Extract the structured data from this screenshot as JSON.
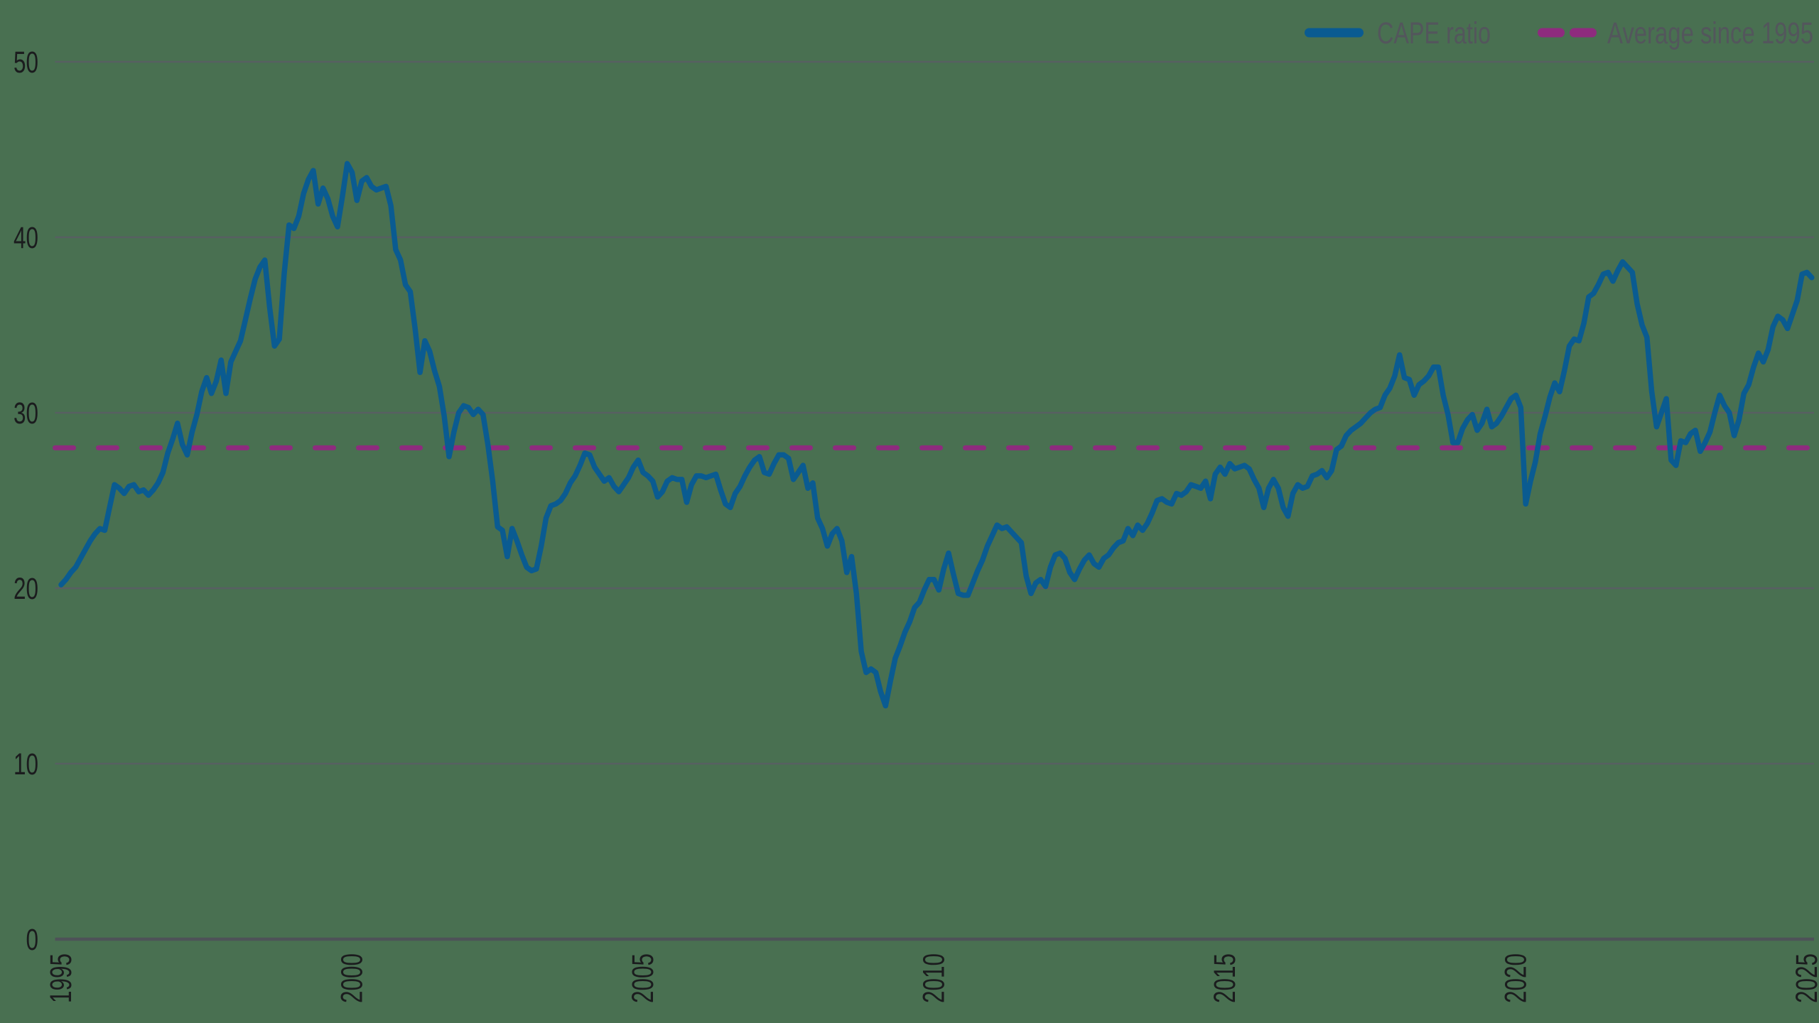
{
  "legend": {
    "series_label": "CAPE ratio",
    "average_label": "Average since 1995"
  },
  "colors": {
    "background": "#497051",
    "line": "#0A5B91",
    "average": "#8E2B7E",
    "grid": "#5A5E64",
    "axis": "#4E5258",
    "tick_text": "#1B1C1E",
    "legend_text": "#53565C"
  },
  "chart_data": {
    "type": "line",
    "title": "",
    "xlabel": "",
    "ylabel": "",
    "x_ticks": [
      1995,
      2000,
      2005,
      2010,
      2015,
      2020,
      2025
    ],
    "y_ticks": [
      0,
      10,
      20,
      30,
      40,
      50
    ],
    "ylim": [
      0,
      50
    ],
    "xlim": [
      1994.9,
      2025.2
    ],
    "grid": true,
    "legend_position": "top-right",
    "average_since_1995": 28,
    "series": [
      {
        "name": "CAPE ratio",
        "start_year": 1995,
        "interval_months": 1,
        "values": [
          20.2,
          20.5,
          20.9,
          21.2,
          21.7,
          22.2,
          22.7,
          23.1,
          23.4,
          23.3,
          24.6,
          25.9,
          25.7,
          25.4,
          25.8,
          25.9,
          25.5,
          25.6,
          25.3,
          25.6,
          26.0,
          26.6,
          27.7,
          28.5,
          29.4,
          28.2,
          27.6,
          28.9,
          29.9,
          31.2,
          32.0,
          31.1,
          31.8,
          33.0,
          31.1,
          32.9,
          33.5,
          34.1,
          35.3,
          36.5,
          37.6,
          38.3,
          38.7,
          36.0,
          33.8,
          34.2,
          37.9,
          40.7,
          40.5,
          41.2,
          42.5,
          43.3,
          43.8,
          41.9,
          42.8,
          42.2,
          41.2,
          40.6,
          42.3,
          44.2,
          43.7,
          42.1,
          43.2,
          43.4,
          42.9,
          42.7,
          42.8,
          42.9,
          41.8,
          39.3,
          38.7,
          37.3,
          36.9,
          34.8,
          32.3,
          34.1,
          33.5,
          32.4,
          31.5,
          29.8,
          27.5,
          28.9,
          30.0,
          30.4,
          30.3,
          29.9,
          30.2,
          29.9,
          28.2,
          26.1,
          23.5,
          23.3,
          21.8,
          23.4,
          22.7,
          21.9,
          21.2,
          21.0,
          21.1,
          22.4,
          24.0,
          24.7,
          24.8,
          25.0,
          25.4,
          26.0,
          26.4,
          27.0,
          27.7,
          27.6,
          26.9,
          26.5,
          26.1,
          26.3,
          25.8,
          25.5,
          25.9,
          26.3,
          26.9,
          27.3,
          26.6,
          26.4,
          26.1,
          25.2,
          25.5,
          26.1,
          26.3,
          26.2,
          26.2,
          24.9,
          25.9,
          26.4,
          26.4,
          26.3,
          26.4,
          26.5,
          25.6,
          24.8,
          24.6,
          25.4,
          25.8,
          26.4,
          26.9,
          27.3,
          27.5,
          26.6,
          26.5,
          27.1,
          27.6,
          27.6,
          27.4,
          26.2,
          26.6,
          27.0,
          25.7,
          26.0,
          24.0,
          23.4,
          22.4,
          23.1,
          23.4,
          22.7,
          20.9,
          21.8,
          19.7,
          16.4,
          15.2,
          15.4,
          15.2,
          14.1,
          13.3,
          14.7,
          16.0,
          16.7,
          17.5,
          18.1,
          18.9,
          19.2,
          19.9,
          20.5,
          20.5,
          19.9,
          21.1,
          22.0,
          20.8,
          19.7,
          19.6,
          19.6,
          20.3,
          21.0,
          21.6,
          22.4,
          23.0,
          23.6,
          23.4,
          23.5,
          23.2,
          22.9,
          22.6,
          20.7,
          19.7,
          20.3,
          20.5,
          20.1,
          21.2,
          21.9,
          22.0,
          21.7,
          20.9,
          20.5,
          21.1,
          21.6,
          21.9,
          21.4,
          21.2,
          21.7,
          21.9,
          22.3,
          22.6,
          22.7,
          23.4,
          23.0,
          23.6,
          23.3,
          23.7,
          24.3,
          25.0,
          25.1,
          24.9,
          24.8,
          25.4,
          25.3,
          25.5,
          25.9,
          25.8,
          25.7,
          26.1,
          25.1,
          26.5,
          26.9,
          26.5,
          27.1,
          26.8,
          26.9,
          27.0,
          26.8,
          26.2,
          25.7,
          24.6,
          25.7,
          26.2,
          25.7,
          24.6,
          24.1,
          25.4,
          25.9,
          25.7,
          25.8,
          26.4,
          26.5,
          26.7,
          26.3,
          26.7,
          27.9,
          28.1,
          28.7,
          29.0,
          29.2,
          29.4,
          29.7,
          30.0,
          30.2,
          30.3,
          31.0,
          31.4,
          32.1,
          33.3,
          32.0,
          31.9,
          31.0,
          31.6,
          31.8,
          32.1,
          32.6,
          32.6,
          31.0,
          29.9,
          28.3,
          28.3,
          29.1,
          29.6,
          29.9,
          29.0,
          29.4,
          30.2,
          29.2,
          29.4,
          29.8,
          30.3,
          30.8,
          31.0,
          30.3,
          24.8,
          26.1,
          27.2,
          28.8,
          29.8,
          30.9,
          31.7,
          31.2,
          32.4,
          33.8,
          34.2,
          34.1,
          35.1,
          36.6,
          36.8,
          37.3,
          37.9,
          38.0,
          37.5,
          38.1,
          38.6,
          38.3,
          38.0,
          36.2,
          35.0,
          34.3,
          31.2,
          29.2,
          30.0,
          30.8,
          27.3,
          27.0,
          28.4,
          28.3,
          28.8,
          29.0,
          27.8,
          28.3,
          28.9,
          30.0,
          31.0,
          30.4,
          30.0,
          28.7,
          29.6,
          31.1,
          31.6,
          32.6,
          33.4,
          32.9,
          33.6,
          34.9,
          35.5,
          35.3,
          34.8,
          35.6,
          36.4,
          37.9,
          38.0,
          37.7
        ]
      },
      {
        "name": "Average since 1995",
        "value": 28
      }
    ]
  }
}
